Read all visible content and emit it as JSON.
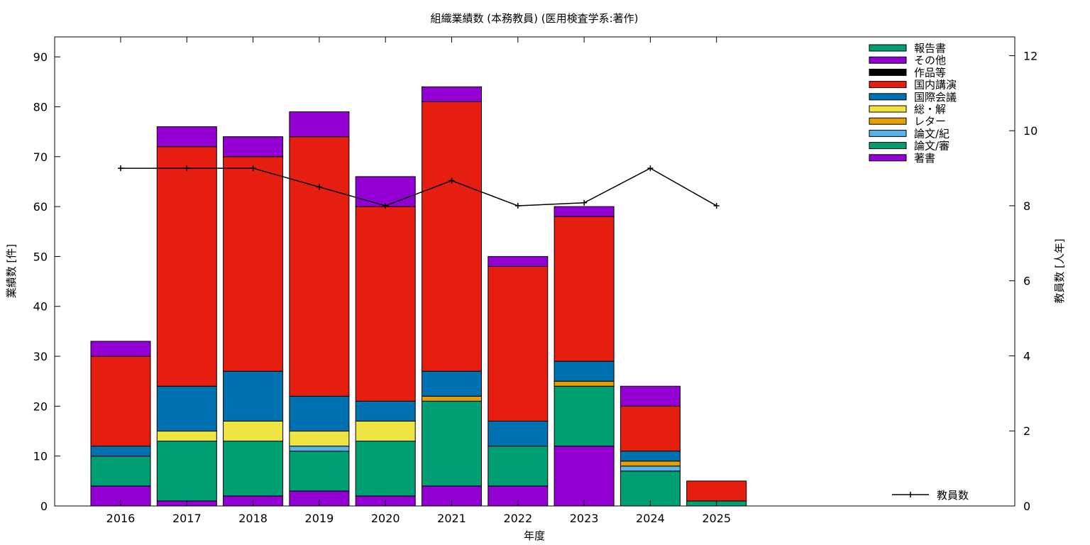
{
  "chart_data": {
    "type": "bar",
    "stacked": true,
    "title": "組織業績数 (本務教員) (医用検査学系:著作)",
    "xlabel": "年度",
    "ylabel": "業績数 [件]",
    "y2label": "教員数 [人年]",
    "categories": [
      "2016",
      "2017",
      "2018",
      "2019",
      "2020",
      "2021",
      "2022",
      "2023",
      "2024",
      "2025"
    ],
    "ylim": [
      0,
      94
    ],
    "yticks": [
      0,
      10,
      20,
      30,
      40,
      50,
      60,
      70,
      80,
      90
    ],
    "y2lim": [
      0,
      12.5
    ],
    "y2ticks": [
      0,
      2,
      4,
      6,
      8,
      10,
      12
    ],
    "grid": false,
    "legend_position": "top-right",
    "series": [
      {
        "name": "著書",
        "color": "#9400d3",
        "values": [
          4,
          1,
          2,
          3,
          2,
          4,
          4,
          12,
          0,
          0
        ]
      },
      {
        "name": "論文/審",
        "color": "#009e73",
        "values": [
          6,
          12,
          11,
          8,
          11,
          17,
          8,
          12,
          7,
          1
        ]
      },
      {
        "name": "論文/紀",
        "color": "#56b4e9",
        "values": [
          0,
          0,
          0,
          1,
          0,
          0,
          0,
          0,
          1,
          0
        ]
      },
      {
        "name": "レター",
        "color": "#e69f00",
        "values": [
          0,
          0,
          0,
          0,
          0,
          1,
          0,
          1,
          1,
          0
        ]
      },
      {
        "name": "総・解",
        "color": "#f0e442",
        "values": [
          0,
          2,
          4,
          3,
          4,
          0,
          0,
          0,
          0,
          0
        ]
      },
      {
        "name": "国際会議",
        "color": "#0072b2",
        "values": [
          2,
          9,
          10,
          7,
          4,
          5,
          5,
          4,
          2,
          0
        ]
      },
      {
        "name": "国内講演",
        "color": "#e51e10",
        "values": [
          18,
          48,
          43,
          52,
          39,
          54,
          31,
          29,
          9,
          4
        ]
      },
      {
        "name": "作品等",
        "color": "#000000",
        "values": [
          0,
          0,
          0,
          0,
          0,
          0,
          0,
          0,
          0,
          0
        ]
      },
      {
        "name": "その他",
        "color": "#9400d3",
        "values": [
          3,
          4,
          4,
          5,
          6,
          3,
          2,
          2,
          4,
          0
        ]
      },
      {
        "name": "報告書",
        "color": "#009e73",
        "values": [
          0,
          0,
          0,
          0,
          0,
          0,
          0,
          0,
          0,
          0
        ]
      }
    ],
    "line_series": {
      "name": "教員数",
      "axis": "y2",
      "color": "#000000",
      "values": [
        9,
        9,
        9,
        8.5,
        8,
        8.67,
        8,
        8.08,
        9,
        8
      ]
    },
    "legend_order": [
      "報告書",
      "その他",
      "作品等",
      "国内講演",
      "国際会議",
      "総・解",
      "レター",
      "論文/紀",
      "論文/審",
      "著書"
    ]
  }
}
